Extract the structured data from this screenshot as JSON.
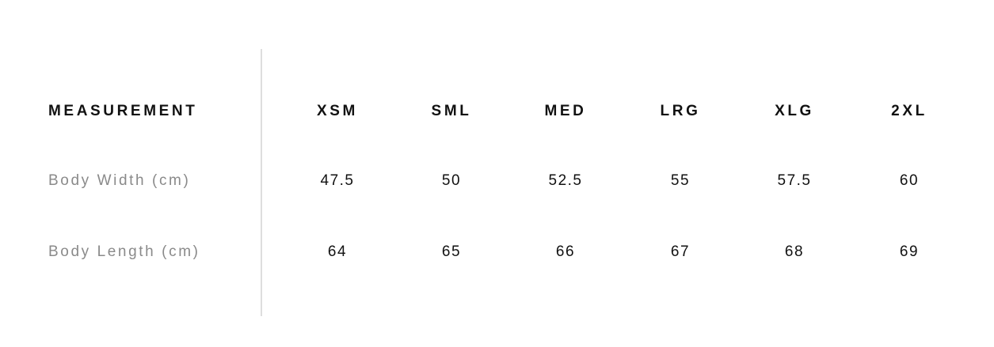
{
  "header": {
    "label": "MEASUREMENT",
    "sizes": [
      "XSM",
      "SML",
      "MED",
      "LRG",
      "XLG",
      "2XL"
    ]
  },
  "rows": [
    {
      "label": "Body Width (cm)",
      "values": [
        "47.5",
        "50",
        "52.5",
        "55",
        "57.5",
        "60"
      ]
    },
    {
      "label": "Body Length (cm)",
      "values": [
        "64",
        "65",
        "66",
        "67",
        "68",
        "69"
      ]
    }
  ]
}
